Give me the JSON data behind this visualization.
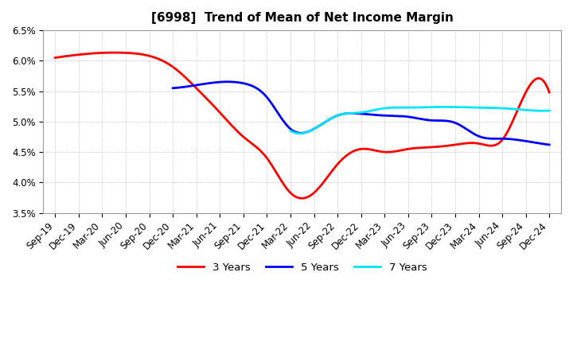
{
  "title": "[6998]  Trend of Mean of Net Income Margin",
  "ylim": [
    0.035,
    0.065
  ],
  "yticks": [
    0.035,
    0.04,
    0.045,
    0.05,
    0.055,
    0.06,
    0.065
  ],
  "x_labels": [
    "Sep-19",
    "Dec-19",
    "Mar-20",
    "Jun-20",
    "Sep-20",
    "Dec-20",
    "Mar-21",
    "Jun-21",
    "Sep-21",
    "Dec-21",
    "Mar-22",
    "Jun-22",
    "Sep-22",
    "Dec-22",
    "Mar-23",
    "Jun-23",
    "Sep-23",
    "Dec-23",
    "Mar-24",
    "Jun-24",
    "Sep-24",
    "Dec-24"
  ],
  "series": {
    "3 Years": {
      "color": "#ff0000",
      "linewidth": 2.0,
      "data": [
        0.0605,
        0.061,
        0.0613,
        0.0613,
        0.0608,
        0.059,
        0.0555,
        0.0515,
        0.0475,
        0.044,
        0.0383,
        0.0383,
        0.043,
        0.0455,
        0.045,
        0.0455,
        0.0458,
        0.0462,
        0.0464,
        0.047,
        0.0548,
        0.0548
      ]
    },
    "5 Years": {
      "color": "#0000ff",
      "linewidth": 2.0,
      "data": [
        null,
        null,
        null,
        null,
        null,
        0.0555,
        0.056,
        0.0565,
        0.0563,
        0.054,
        0.0488,
        0.0488,
        0.051,
        0.0513,
        0.051,
        0.0508,
        0.0502,
        0.0498,
        0.0476,
        0.0472,
        0.0468,
        0.0462
      ]
    },
    "7 Years": {
      "color": "#00e5ff",
      "linewidth": 2.0,
      "data": [
        null,
        null,
        null,
        null,
        null,
        null,
        null,
        null,
        null,
        null,
        0.0485,
        0.0488,
        0.051,
        0.0515,
        0.0522,
        0.0523,
        0.0524,
        0.0524,
        0.0523,
        0.0522,
        0.0519,
        0.0518
      ]
    },
    "10 Years": {
      "color": "#008000",
      "linewidth": 2.0,
      "data": [
        null,
        null,
        null,
        null,
        null,
        null,
        null,
        null,
        null,
        null,
        null,
        null,
        null,
        null,
        null,
        null,
        null,
        null,
        null,
        null,
        null,
        null
      ]
    }
  },
  "background_color": "#ffffff",
  "grid_color": "#b0b0b0",
  "title_fontsize": 11,
  "tick_fontsize": 8.5
}
